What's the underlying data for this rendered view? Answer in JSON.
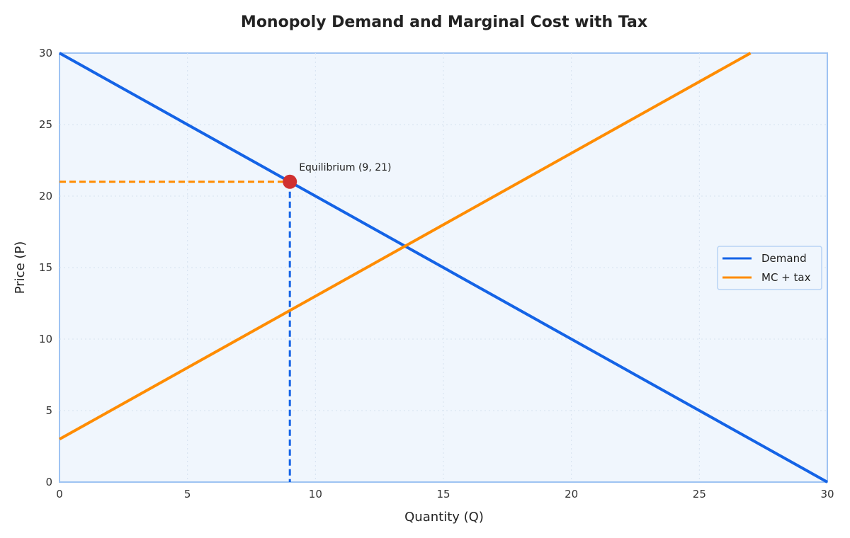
{
  "chart_data": {
    "type": "line",
    "title": "Monopoly Demand and Marginal Cost with Tax",
    "xlabel": "Quantity (Q)",
    "ylabel": "Price (P)",
    "xlim": [
      0,
      30
    ],
    "ylim": [
      0,
      30
    ],
    "xticks": [
      0,
      5,
      10,
      15,
      20,
      25,
      30
    ],
    "yticks": [
      0,
      5,
      10,
      15,
      20,
      25,
      30
    ],
    "grid": true,
    "legend_position": "right",
    "background_color": "#f0f6fd",
    "series": [
      {
        "name": "Demand",
        "color": "#1463e6",
        "x": [
          0,
          30
        ],
        "y": [
          30,
          0
        ]
      },
      {
        "name": "MC + tax",
        "color": "#ff8c00",
        "x": [
          0,
          27
        ],
        "y": [
          3,
          30
        ]
      }
    ],
    "equilibrium": {
      "q": 9,
      "p": 21,
      "label": "Equilibrium (9, 21)",
      "color": "#d03030"
    }
  }
}
